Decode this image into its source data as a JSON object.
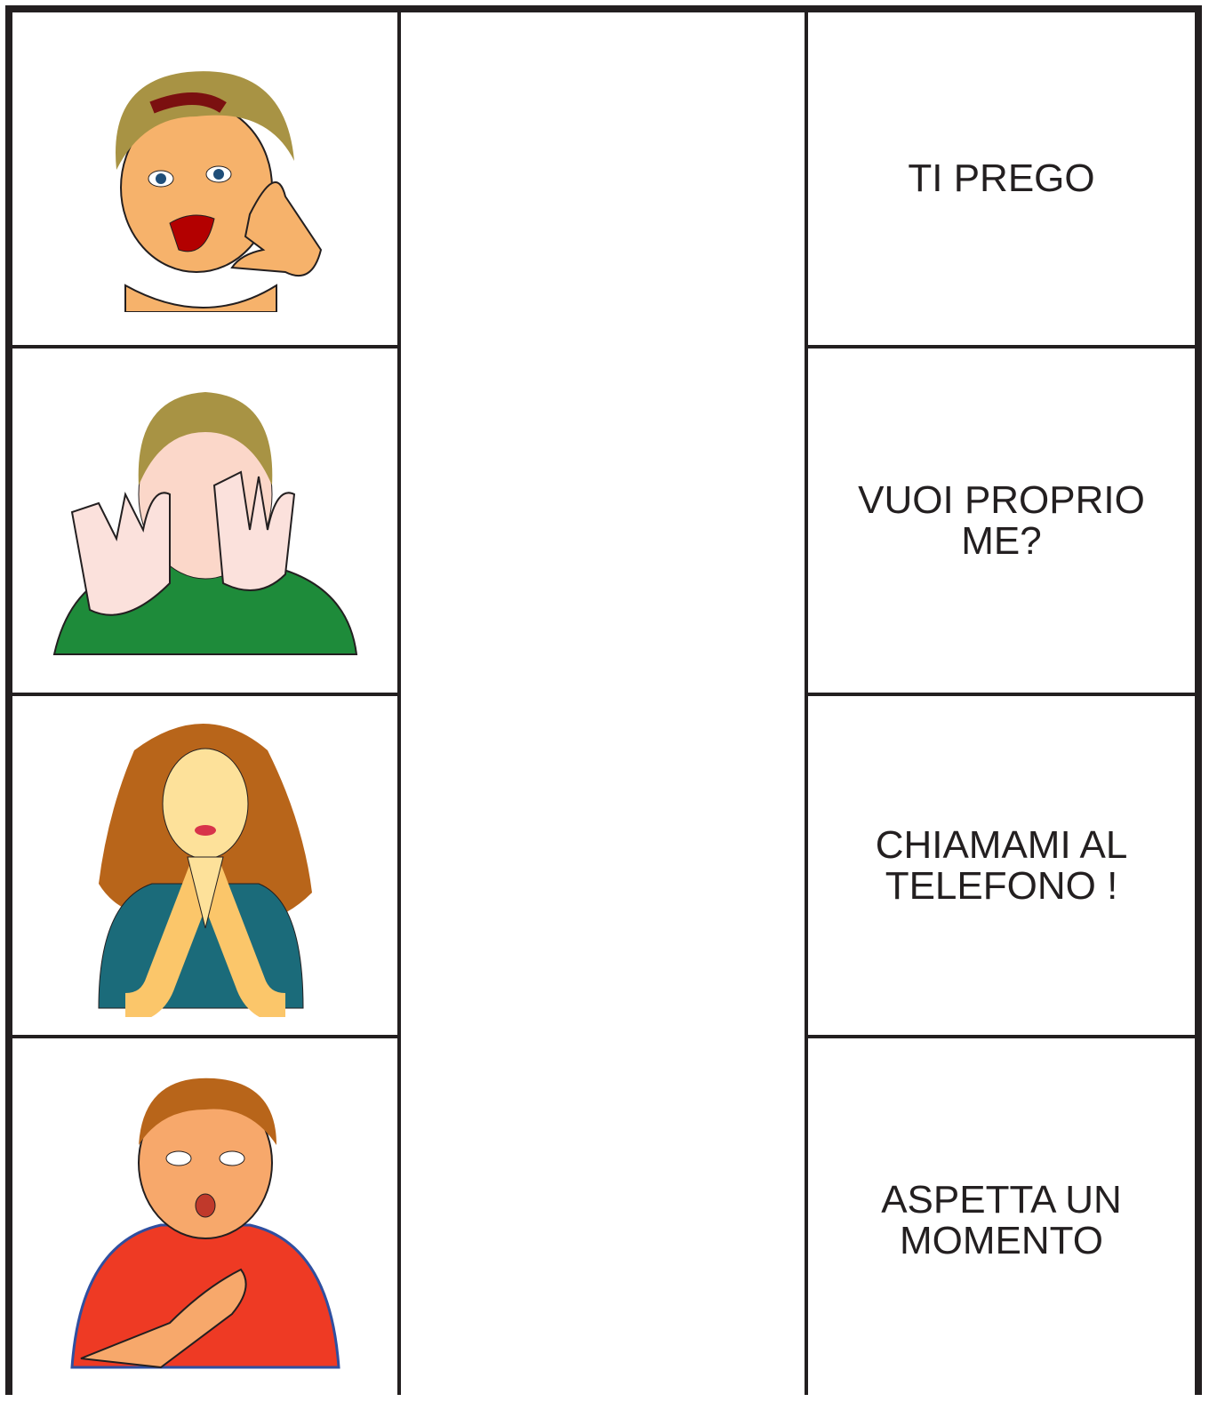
{
  "rows": [
    {
      "label": "TI PREGO"
    },
    {
      "label": "VUOI PROPRIO ME?"
    },
    {
      "label": "CHIAMAMI AL TELEFONO !"
    },
    {
      "label": "ASPETTA UN MOMENTO"
    }
  ]
}
